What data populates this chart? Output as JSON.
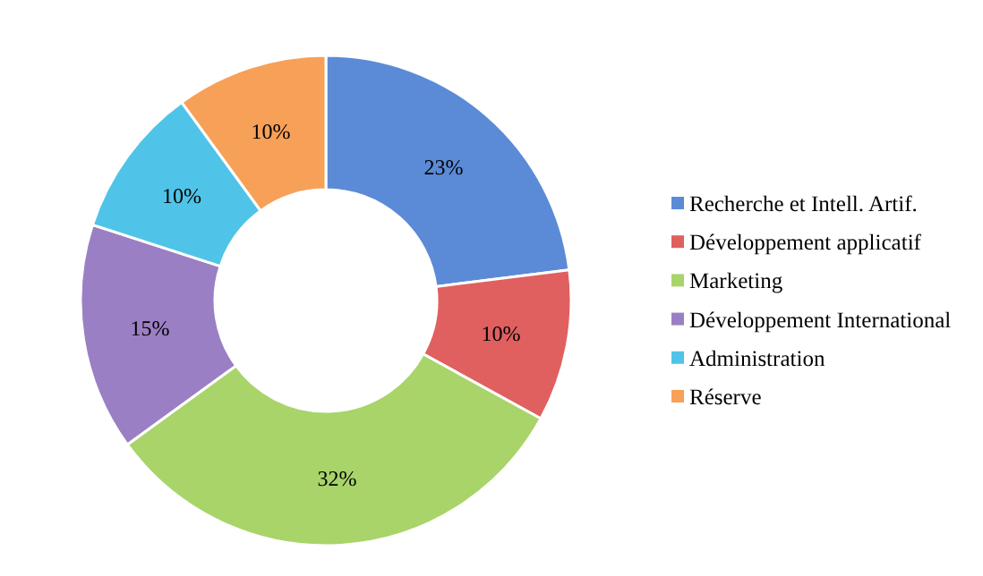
{
  "chart_data": {
    "type": "donut",
    "categories": [
      "Recherche et Intell. Artif.",
      "Développement applicatif",
      "Marketing",
      "Développement International",
      "Administration",
      "Réserve"
    ],
    "values": [
      23,
      10,
      32,
      15,
      10,
      10
    ],
    "colors": [
      "#5b8bd6",
      "#e06060",
      "#a8d46a",
      "#9b7fc4",
      "#4fc4e8",
      "#f7a058"
    ],
    "value_labels": [
      "23%",
      "10%",
      "32%",
      "15%",
      "10%",
      "10%"
    ],
    "legend": "right"
  }
}
